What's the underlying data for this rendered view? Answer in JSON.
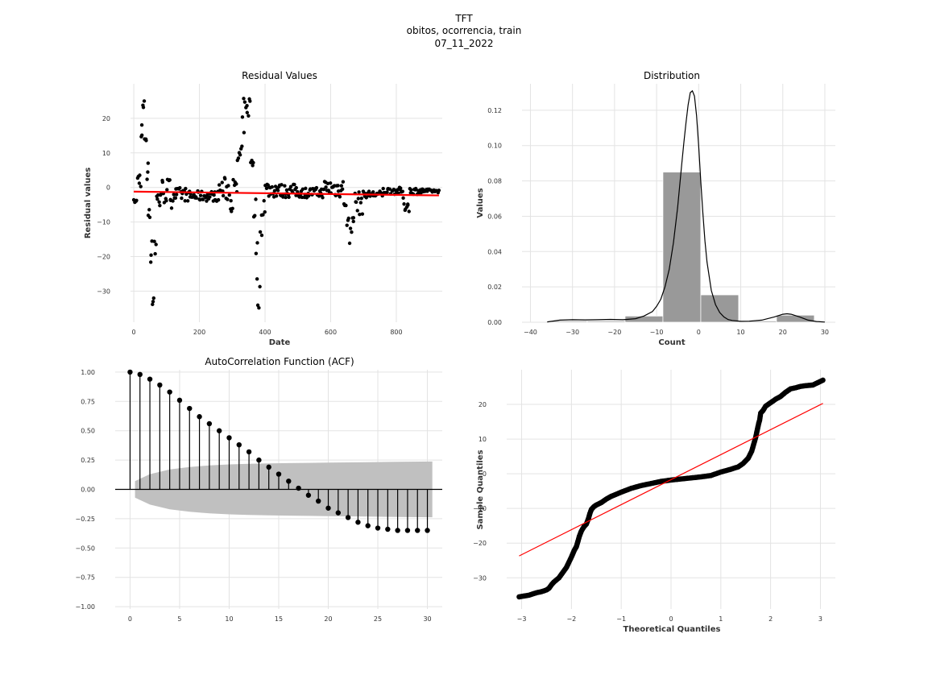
{
  "figure": {
    "title_lines": [
      "TFT",
      "obitos, ocorrencia, train",
      "07_11_2022"
    ]
  },
  "chart_data": [
    {
      "type": "scatter",
      "title": "Residual Values",
      "xlabel": "Date",
      "ylabel": "Residual values",
      "xlim": [
        -10,
        940
      ],
      "ylim": [
        -39,
        30
      ],
      "xticks": [
        0,
        200,
        400,
        600,
        800
      ],
      "yticks": [
        -30,
        -20,
        -10,
        0,
        10,
        20
      ],
      "grid": true,
      "point_color": "#000000",
      "trend_color": "#ff0000",
      "trend_line": {
        "x": [
          0,
          930
        ],
        "y": [
          -1.2,
          -2.3
        ]
      },
      "segments": [
        [
          0,
          10,
          -4.5,
          -3.5
        ],
        [
          10,
          22,
          0,
          5
        ],
        [
          22,
          26,
          10,
          20
        ],
        [
          26,
          32,
          20,
          25.5
        ],
        [
          32,
          40,
          10,
          22
        ],
        [
          40,
          44,
          0,
          8
        ],
        [
          44,
          50,
          -10,
          -3
        ],
        [
          50,
          56,
          -22,
          -15
        ],
        [
          56,
          62,
          -35,
          -28
        ],
        [
          62,
          68,
          -22,
          -10
        ],
        [
          68,
          80,
          -7,
          0
        ],
        [
          80,
          100,
          -5,
          3
        ],
        [
          100,
          120,
          -6,
          3
        ],
        [
          120,
          160,
          -4,
          0
        ],
        [
          160,
          260,
          -4,
          -1
        ],
        [
          260,
          290,
          -4,
          3
        ],
        [
          290,
          315,
          -7,
          3
        ],
        [
          315,
          330,
          5,
          12
        ],
        [
          330,
          345,
          15,
          26
        ],
        [
          345,
          355,
          20,
          27
        ],
        [
          355,
          365,
          5,
          10
        ],
        [
          365,
          372,
          -10,
          -2
        ],
        [
          372,
          378,
          -28,
          -15
        ],
        [
          378,
          385,
          -35,
          -28
        ],
        [
          385,
          392,
          -15,
          -5
        ],
        [
          392,
          400,
          -8,
          -1
        ],
        [
          400,
          440,
          -3,
          2
        ],
        [
          440,
          500,
          -3,
          1
        ],
        [
          500,
          580,
          -3,
          0
        ],
        [
          580,
          640,
          -3,
          2.5
        ],
        [
          640,
          648,
          -6,
          -2
        ],
        [
          648,
          656,
          -15,
          -8
        ],
        [
          656,
          664,
          -17,
          -10
        ],
        [
          664,
          672,
          -10,
          -6
        ],
        [
          672,
          700,
          -8,
          -1
        ],
        [
          700,
          760,
          -3,
          -1
        ],
        [
          760,
          820,
          -2,
          0
        ],
        [
          820,
          840,
          -7,
          -3
        ],
        [
          840,
          880,
          -2,
          0
        ],
        [
          880,
          930,
          -1.5,
          -0.5
        ]
      ]
    },
    {
      "type": "bar",
      "title": "Distribution",
      "xlabel": "Count",
      "ylabel": "Values",
      "xlim": [
        -42,
        32.5
      ],
      "ylim": [
        0,
        0.135
      ],
      "xticks": [
        -40,
        -30,
        -20,
        -10,
        0,
        10,
        20,
        30
      ],
      "yticks": [
        0.0,
        0.02,
        0.04,
        0.06,
        0.08,
        0.1,
        0.12
      ],
      "ytick_labels": [
        "0.00",
        "0.02",
        "0.04",
        "0.06",
        "0.08",
        "0.10",
        "0.12"
      ],
      "grid": true,
      "bar_color": "#999999",
      "bins": [
        {
          "x0": -35.5,
          "x1": -26.5,
          "value": 0.0007
        },
        {
          "x0": -26.5,
          "x1": -17.5,
          "value": 0.0007
        },
        {
          "x0": -17.5,
          "x1": -8.5,
          "value": 0.0035
        },
        {
          "x0": -8.5,
          "x1": 0.5,
          "value": 0.085
        },
        {
          "x0": 0.5,
          "x1": 9.5,
          "value": 0.0155
        },
        {
          "x0": 9.5,
          "x1": 18.5,
          "value": 0.0007
        },
        {
          "x0": 18.5,
          "x1": 27.5,
          "value": 0.004
        }
      ],
      "kde": {
        "x": [
          -36,
          -33,
          -30,
          -27,
          -24,
          -21,
          -18,
          -15,
          -13,
          -11,
          -10,
          -9,
          -8,
          -7,
          -6,
          -5,
          -4,
          -3.5,
          -3,
          -2.5,
          -2,
          -1.5,
          -1,
          -0.5,
          0,
          0.5,
          1,
          1.5,
          2,
          3,
          4,
          5,
          6,
          7,
          8,
          10,
          12,
          15,
          18,
          20,
          21,
          22,
          24,
          26,
          28,
          30
        ],
        "y": [
          0.0002,
          0.0012,
          0.0014,
          0.0013,
          0.0014,
          0.0016,
          0.0014,
          0.002,
          0.0035,
          0.006,
          0.009,
          0.013,
          0.02,
          0.03,
          0.045,
          0.065,
          0.09,
          0.102,
          0.113,
          0.123,
          0.13,
          0.131,
          0.128,
          0.117,
          0.1,
          0.08,
          0.062,
          0.046,
          0.034,
          0.018,
          0.01,
          0.0055,
          0.003,
          0.0015,
          0.001,
          0.0005,
          0.0006,
          0.0012,
          0.003,
          0.0045,
          0.0048,
          0.0045,
          0.003,
          0.0012,
          0.0004,
          0.0001
        ]
      }
    },
    {
      "type": "stem",
      "title": "AutoCorrelation Function (ACF)",
      "xlim": [
        -1.5,
        31.5
      ],
      "ylim": [
        -1.02,
        1.02
      ],
      "xticks": [
        0,
        5,
        10,
        15,
        20,
        25,
        30
      ],
      "yticks": [
        -1.0,
        -0.75,
        -0.5,
        -0.25,
        0.0,
        0.25,
        0.5,
        0.75,
        1.0
      ],
      "ytick_labels": [
        "−1.00",
        "−0.75",
        "−0.50",
        "−0.25",
        "0.00",
        "0.25",
        "0.50",
        "0.75",
        "1.00"
      ],
      "grid": true,
      "lags": [
        0,
        1,
        2,
        3,
        4,
        5,
        6,
        7,
        8,
        9,
        10,
        11,
        12,
        13,
        14,
        15,
        16,
        17,
        18,
        19,
        20,
        21,
        22,
        23,
        24,
        25,
        26,
        27,
        28,
        29,
        30
      ],
      "values": [
        1.0,
        0.98,
        0.94,
        0.89,
        0.83,
        0.76,
        0.69,
        0.62,
        0.56,
        0.5,
        0.44,
        0.38,
        0.32,
        0.25,
        0.19,
        0.13,
        0.07,
        0.01,
        -0.05,
        -0.1,
        -0.16,
        -0.2,
        -0.24,
        -0.28,
        -0.31,
        -0.33,
        -0.34,
        -0.35,
        -0.35,
        -0.35,
        -0.35
      ],
      "confidence_band": {
        "lags": [
          0.5,
          2,
          4,
          6,
          8,
          10,
          12,
          14,
          16,
          18,
          20,
          22,
          24,
          26,
          28,
          30.5
        ],
        "upper": [
          0.07,
          0.13,
          0.17,
          0.19,
          0.205,
          0.213,
          0.218,
          0.221,
          0.224,
          0.226,
          0.228,
          0.23,
          0.232,
          0.234,
          0.236,
          0.238
        ],
        "lower": [
          -0.07,
          -0.13,
          -0.17,
          -0.19,
          -0.205,
          -0.213,
          -0.218,
          -0.221,
          -0.224,
          -0.226,
          -0.228,
          -0.23,
          -0.232,
          -0.234,
          -0.236,
          -0.238
        ]
      },
      "band_color": "#c0c0c0"
    },
    {
      "type": "scatter",
      "title": "",
      "xlabel": "Theoretical Quantiles",
      "ylabel": "Sample Quantiles",
      "xlim": [
        -3.3,
        3.3
      ],
      "ylim": [
        -39,
        30
      ],
      "xticks": [
        -3,
        -2,
        -1,
        0,
        1,
        2,
        3
      ],
      "yticks": [
        -30,
        -20,
        -10,
        0,
        10,
        20
      ],
      "grid": true,
      "point_color": "#000000",
      "line_color": "#ff0000",
      "reference_line": {
        "x": [
          -3.05,
          3.05
        ],
        "y": [
          -23.7,
          20.3
        ]
      },
      "points": [
        [
          -3.05,
          -35.5
        ],
        [
          -2.85,
          -35
        ],
        [
          -2.7,
          -34.3
        ],
        [
          -2.6,
          -34
        ],
        [
          -2.5,
          -33.5
        ],
        [
          -2.45,
          -33
        ],
        [
          -2.4,
          -32
        ],
        [
          -2.35,
          -31.2
        ],
        [
          -2.3,
          -30.6
        ],
        [
          -2.25,
          -30
        ],
        [
          -2.2,
          -29
        ],
        [
          -2.15,
          -28
        ],
        [
          -2.1,
          -27
        ],
        [
          -2.05,
          -25.5
        ],
        [
          -2.0,
          -24
        ],
        [
          -1.97,
          -23
        ],
        [
          -1.94,
          -22
        ],
        [
          -1.9,
          -21
        ],
        [
          -1.87,
          -19.5
        ],
        [
          -1.84,
          -18
        ],
        [
          -1.8,
          -16.5
        ],
        [
          -1.75,
          -15.3
        ],
        [
          -1.7,
          -14.5
        ],
        [
          -1.66,
          -13
        ],
        [
          -1.63,
          -11.5
        ],
        [
          -1.6,
          -10.3
        ],
        [
          -1.55,
          -9.5
        ],
        [
          -1.5,
          -9
        ],
        [
          -1.4,
          -8.3
        ],
        [
          -1.3,
          -7.3
        ],
        [
          -1.2,
          -6.5
        ],
        [
          -1.0,
          -5.3
        ],
        [
          -0.8,
          -4.2
        ],
        [
          -0.6,
          -3.4
        ],
        [
          -0.4,
          -2.8
        ],
        [
          -0.2,
          -2.2
        ],
        [
          0,
          -1.8
        ],
        [
          0.2,
          -1.5
        ],
        [
          0.4,
          -1.2
        ],
        [
          0.6,
          -0.9
        ],
        [
          0.8,
          -0.5
        ],
        [
          1.0,
          0.5
        ],
        [
          1.2,
          1.3
        ],
        [
          1.35,
          2
        ],
        [
          1.45,
          3
        ],
        [
          1.55,
          4.5
        ],
        [
          1.62,
          6.5
        ],
        [
          1.66,
          8.5
        ],
        [
          1.7,
          10.5
        ],
        [
          1.73,
          12.5
        ],
        [
          1.76,
          14.5
        ],
        [
          1.78,
          15.5
        ],
        [
          1.8,
          17.5
        ],
        [
          1.85,
          18.3
        ],
        [
          1.9,
          19.5
        ],
        [
          2.0,
          20.5
        ],
        [
          2.1,
          21.5
        ],
        [
          2.2,
          22.3
        ],
        [
          2.3,
          23.5
        ],
        [
          2.4,
          24.5
        ],
        [
          2.5,
          24.8
        ],
        [
          2.6,
          25.2
        ],
        [
          2.7,
          25.4
        ],
        [
          2.85,
          25.6
        ],
        [
          3.05,
          27
        ]
      ]
    }
  ]
}
